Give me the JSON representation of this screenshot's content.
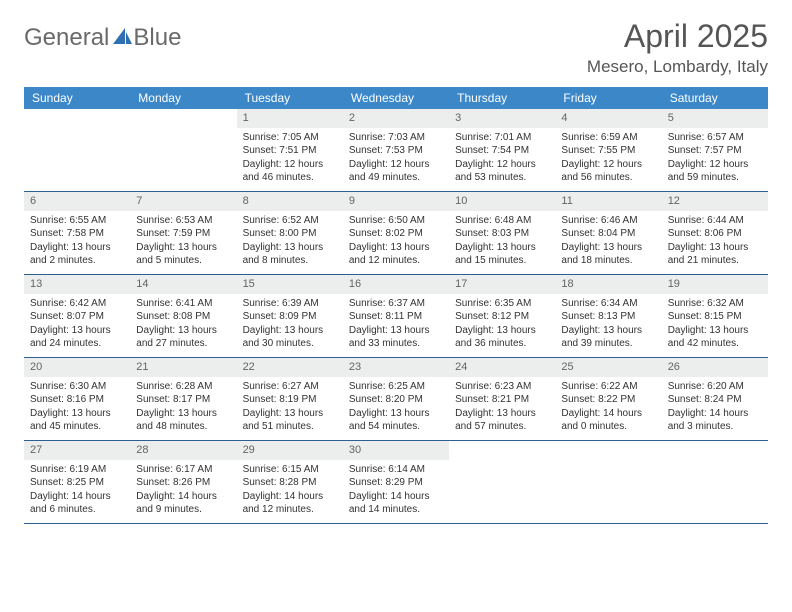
{
  "logo": {
    "word1": "General",
    "word2": "Blue"
  },
  "title": "April 2025",
  "location": "Mesero, Lombardy, Italy",
  "weekdays": [
    "Sunday",
    "Monday",
    "Tuesday",
    "Wednesday",
    "Thursday",
    "Friday",
    "Saturday"
  ],
  "colors": {
    "header_bg": "#3b87c8",
    "daynum_bg": "#eceded",
    "row_border": "#2d5f8f",
    "logo_accent": "#2d6fb0"
  },
  "grid": [
    [
      null,
      null,
      {
        "n": "1",
        "sunrise": "Sunrise: 7:05 AM",
        "sunset": "Sunset: 7:51 PM",
        "dl1": "Daylight: 12 hours",
        "dl2": "and 46 minutes."
      },
      {
        "n": "2",
        "sunrise": "Sunrise: 7:03 AM",
        "sunset": "Sunset: 7:53 PM",
        "dl1": "Daylight: 12 hours",
        "dl2": "and 49 minutes."
      },
      {
        "n": "3",
        "sunrise": "Sunrise: 7:01 AM",
        "sunset": "Sunset: 7:54 PM",
        "dl1": "Daylight: 12 hours",
        "dl2": "and 53 minutes."
      },
      {
        "n": "4",
        "sunrise": "Sunrise: 6:59 AM",
        "sunset": "Sunset: 7:55 PM",
        "dl1": "Daylight: 12 hours",
        "dl2": "and 56 minutes."
      },
      {
        "n": "5",
        "sunrise": "Sunrise: 6:57 AM",
        "sunset": "Sunset: 7:57 PM",
        "dl1": "Daylight: 12 hours",
        "dl2": "and 59 minutes."
      }
    ],
    [
      {
        "n": "6",
        "sunrise": "Sunrise: 6:55 AM",
        "sunset": "Sunset: 7:58 PM",
        "dl1": "Daylight: 13 hours",
        "dl2": "and 2 minutes."
      },
      {
        "n": "7",
        "sunrise": "Sunrise: 6:53 AM",
        "sunset": "Sunset: 7:59 PM",
        "dl1": "Daylight: 13 hours",
        "dl2": "and 5 minutes."
      },
      {
        "n": "8",
        "sunrise": "Sunrise: 6:52 AM",
        "sunset": "Sunset: 8:00 PM",
        "dl1": "Daylight: 13 hours",
        "dl2": "and 8 minutes."
      },
      {
        "n": "9",
        "sunrise": "Sunrise: 6:50 AM",
        "sunset": "Sunset: 8:02 PM",
        "dl1": "Daylight: 13 hours",
        "dl2": "and 12 minutes."
      },
      {
        "n": "10",
        "sunrise": "Sunrise: 6:48 AM",
        "sunset": "Sunset: 8:03 PM",
        "dl1": "Daylight: 13 hours",
        "dl2": "and 15 minutes."
      },
      {
        "n": "11",
        "sunrise": "Sunrise: 6:46 AM",
        "sunset": "Sunset: 8:04 PM",
        "dl1": "Daylight: 13 hours",
        "dl2": "and 18 minutes."
      },
      {
        "n": "12",
        "sunrise": "Sunrise: 6:44 AM",
        "sunset": "Sunset: 8:06 PM",
        "dl1": "Daylight: 13 hours",
        "dl2": "and 21 minutes."
      }
    ],
    [
      {
        "n": "13",
        "sunrise": "Sunrise: 6:42 AM",
        "sunset": "Sunset: 8:07 PM",
        "dl1": "Daylight: 13 hours",
        "dl2": "and 24 minutes."
      },
      {
        "n": "14",
        "sunrise": "Sunrise: 6:41 AM",
        "sunset": "Sunset: 8:08 PM",
        "dl1": "Daylight: 13 hours",
        "dl2": "and 27 minutes."
      },
      {
        "n": "15",
        "sunrise": "Sunrise: 6:39 AM",
        "sunset": "Sunset: 8:09 PM",
        "dl1": "Daylight: 13 hours",
        "dl2": "and 30 minutes."
      },
      {
        "n": "16",
        "sunrise": "Sunrise: 6:37 AM",
        "sunset": "Sunset: 8:11 PM",
        "dl1": "Daylight: 13 hours",
        "dl2": "and 33 minutes."
      },
      {
        "n": "17",
        "sunrise": "Sunrise: 6:35 AM",
        "sunset": "Sunset: 8:12 PM",
        "dl1": "Daylight: 13 hours",
        "dl2": "and 36 minutes."
      },
      {
        "n": "18",
        "sunrise": "Sunrise: 6:34 AM",
        "sunset": "Sunset: 8:13 PM",
        "dl1": "Daylight: 13 hours",
        "dl2": "and 39 minutes."
      },
      {
        "n": "19",
        "sunrise": "Sunrise: 6:32 AM",
        "sunset": "Sunset: 8:15 PM",
        "dl1": "Daylight: 13 hours",
        "dl2": "and 42 minutes."
      }
    ],
    [
      {
        "n": "20",
        "sunrise": "Sunrise: 6:30 AM",
        "sunset": "Sunset: 8:16 PM",
        "dl1": "Daylight: 13 hours",
        "dl2": "and 45 minutes."
      },
      {
        "n": "21",
        "sunrise": "Sunrise: 6:28 AM",
        "sunset": "Sunset: 8:17 PM",
        "dl1": "Daylight: 13 hours",
        "dl2": "and 48 minutes."
      },
      {
        "n": "22",
        "sunrise": "Sunrise: 6:27 AM",
        "sunset": "Sunset: 8:19 PM",
        "dl1": "Daylight: 13 hours",
        "dl2": "and 51 minutes."
      },
      {
        "n": "23",
        "sunrise": "Sunrise: 6:25 AM",
        "sunset": "Sunset: 8:20 PM",
        "dl1": "Daylight: 13 hours",
        "dl2": "and 54 minutes."
      },
      {
        "n": "24",
        "sunrise": "Sunrise: 6:23 AM",
        "sunset": "Sunset: 8:21 PM",
        "dl1": "Daylight: 13 hours",
        "dl2": "and 57 minutes."
      },
      {
        "n": "25",
        "sunrise": "Sunrise: 6:22 AM",
        "sunset": "Sunset: 8:22 PM",
        "dl1": "Daylight: 14 hours",
        "dl2": "and 0 minutes."
      },
      {
        "n": "26",
        "sunrise": "Sunrise: 6:20 AM",
        "sunset": "Sunset: 8:24 PM",
        "dl1": "Daylight: 14 hours",
        "dl2": "and 3 minutes."
      }
    ],
    [
      {
        "n": "27",
        "sunrise": "Sunrise: 6:19 AM",
        "sunset": "Sunset: 8:25 PM",
        "dl1": "Daylight: 14 hours",
        "dl2": "and 6 minutes."
      },
      {
        "n": "28",
        "sunrise": "Sunrise: 6:17 AM",
        "sunset": "Sunset: 8:26 PM",
        "dl1": "Daylight: 14 hours",
        "dl2": "and 9 minutes."
      },
      {
        "n": "29",
        "sunrise": "Sunrise: 6:15 AM",
        "sunset": "Sunset: 8:28 PM",
        "dl1": "Daylight: 14 hours",
        "dl2": "and 12 minutes."
      },
      {
        "n": "30",
        "sunrise": "Sunrise: 6:14 AM",
        "sunset": "Sunset: 8:29 PM",
        "dl1": "Daylight: 14 hours",
        "dl2": "and 14 minutes."
      },
      null,
      null,
      null
    ]
  ]
}
